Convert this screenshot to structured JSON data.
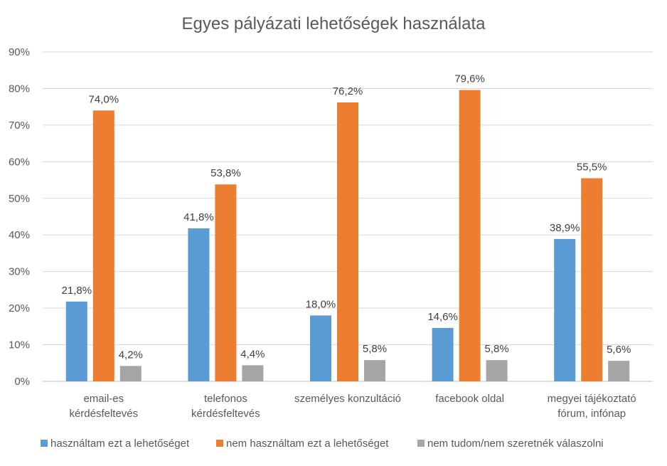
{
  "chart_data": {
    "type": "bar",
    "title": "Egyes pályázati lehetőségek használata",
    "categories": [
      [
        "email-es",
        "kérdésfeltevés"
      ],
      [
        "telefonos",
        "kérdésfeltevés"
      ],
      [
        "személyes konzultáció"
      ],
      [
        "facebook oldal"
      ],
      [
        "megyei tájékoztató",
        "fórum, infónap"
      ]
    ],
    "series": [
      {
        "name": "használtam ezt a lehetőséget",
        "color": "#5b9bd5",
        "values": [
          21.8,
          41.8,
          18.0,
          14.6,
          38.9
        ],
        "labels": [
          "21,8%",
          "41,8%",
          "18,0%",
          "14,6%",
          "38,9%"
        ]
      },
      {
        "name": "nem használtam ezt a lehetőséget",
        "color": "#ed7d31",
        "values": [
          74.0,
          53.8,
          76.2,
          79.6,
          55.5
        ],
        "labels": [
          "74,0%",
          "53,8%",
          "76,2%",
          "79,6%",
          "55,5%"
        ]
      },
      {
        "name": "nem tudom/nem szeretnék válaszolni",
        "color": "#a5a5a5",
        "values": [
          4.2,
          4.4,
          5.8,
          5.8,
          5.6
        ],
        "labels": [
          "4,2%",
          "4,4%",
          "5,8%",
          "5,8%",
          "5,6%"
        ]
      }
    ],
    "ylim": [
      0,
      90
    ],
    "yticks": [
      0,
      10,
      20,
      30,
      40,
      50,
      60,
      70,
      80,
      90
    ],
    "ytick_labels": [
      "0%",
      "10%",
      "20%",
      "30%",
      "40%",
      "50%",
      "60%",
      "70%",
      "80%",
      "90%"
    ],
    "xlabel": "",
    "ylabel": "",
    "grid": true,
    "legend_position": "bottom"
  }
}
